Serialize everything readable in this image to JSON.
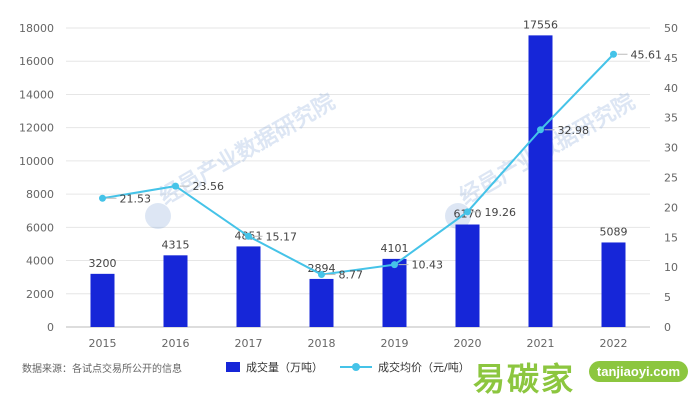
{
  "chart_data": {
    "type": "bar+line",
    "categories": [
      "2015",
      "2016",
      "2017",
      "2018",
      "2019",
      "2020",
      "2021",
      "2022"
    ],
    "series": [
      {
        "name": "成交量（万吨）",
        "type": "bar",
        "axis": "left",
        "values": [
          3200,
          4315,
          4851,
          2894,
          4101,
          6170,
          17556,
          5089
        ],
        "labels": [
          "3200",
          "4315",
          "4851",
          "2894",
          "4101",
          "6170",
          "17556",
          "5089"
        ],
        "color": "#1626d8"
      },
      {
        "name": "成交均价（元/吨）",
        "type": "line",
        "axis": "right",
        "values": [
          21.53,
          23.56,
          15.17,
          8.77,
          10.43,
          19.26,
          32.98,
          45.61
        ],
        "labels": [
          "21.53",
          "23.56",
          "15.17",
          "8.77",
          "10.43",
          "19.26",
          "32.98",
          "45.61"
        ],
        "color": "#45c3e8"
      }
    ],
    "y_left": {
      "range": [
        0,
        18000
      ],
      "ticks": [
        "0",
        "2000",
        "4000",
        "6000",
        "8000",
        "10000",
        "12000",
        "14000",
        "16000",
        "18000"
      ]
    },
    "y_right": {
      "range": [
        0,
        50
      ],
      "ticks": [
        "0",
        "5",
        "10",
        "15",
        "20",
        "25",
        "30",
        "35",
        "40",
        "45",
        "50"
      ]
    },
    "grid": true,
    "legend_position": "bottom",
    "source_note": "数据来源：各试点交易所公开的信息",
    "watermark": "经邑产业数据研究院 Jingyi Intelligence Research Institute"
  },
  "logo": {
    "text": "易碳家",
    "badge": "tanjiaoyi.com"
  }
}
